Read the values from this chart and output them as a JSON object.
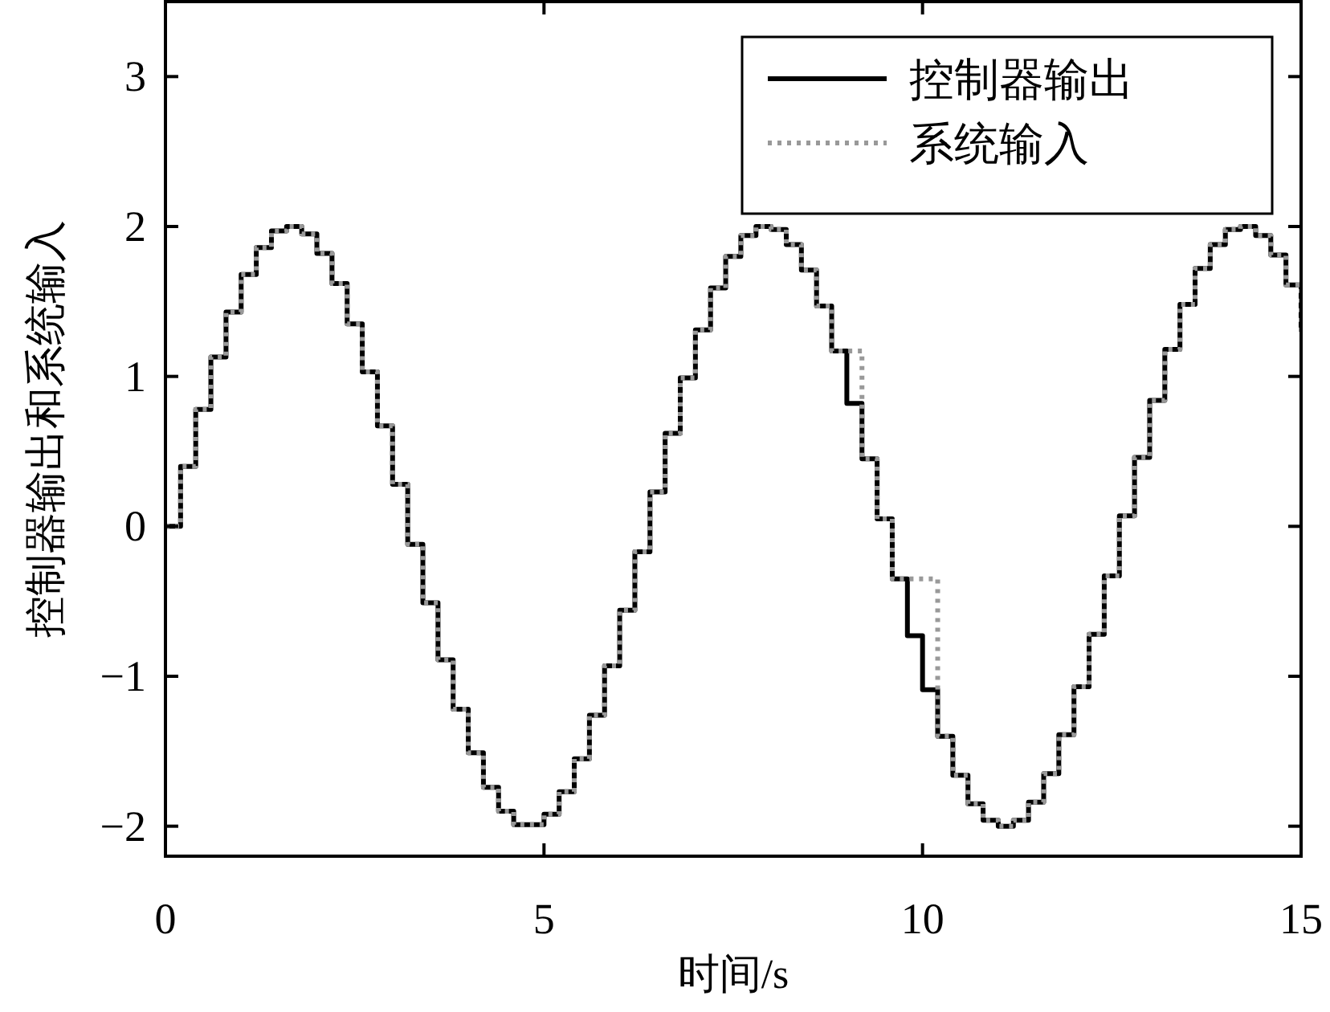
{
  "chart_data": {
    "type": "step",
    "xlabel": "时间/s",
    "ylabel": "控制器输出和系统输入",
    "x": [
      0,
      0.2,
      0.4,
      0.6,
      0.8,
      1.0,
      1.2,
      1.4,
      1.6,
      1.8,
      2.0,
      2.2,
      2.4,
      2.6,
      2.8,
      3.0,
      3.2,
      3.4,
      3.6,
      3.8,
      4.0,
      4.2,
      4.4,
      4.6,
      4.8,
      5.0,
      5.2,
      5.4,
      5.6,
      5.8,
      6.0,
      6.2,
      6.4,
      6.6,
      6.8,
      7.0,
      7.2,
      7.4,
      7.6,
      7.8,
      8.0,
      8.2,
      8.4,
      8.6,
      8.8,
      9.0,
      9.2,
      9.4,
      9.6,
      9.8,
      10.0,
      10.2,
      10.4,
      10.6,
      10.8,
      11.0,
      11.2,
      11.4,
      11.6,
      11.8,
      12.0,
      12.2,
      12.4,
      12.6,
      12.8,
      13.0,
      13.2,
      13.4,
      13.6,
      13.8,
      14.0,
      14.2,
      14.4,
      14.6,
      14.8,
      15.0
    ],
    "series": [
      {
        "name": "控制器输出",
        "color": "#000000",
        "line_style": "solid",
        "values": [
          0,
          0.4,
          0.78,
          1.13,
          1.43,
          1.68,
          1.86,
          1.97,
          2.0,
          1.95,
          1.82,
          1.62,
          1.35,
          1.03,
          0.67,
          0.28,
          -0.12,
          -0.51,
          -0.89,
          -1.22,
          -1.51,
          -1.74,
          -1.9,
          -1.99,
          -1.99,
          -1.92,
          -1.77,
          -1.55,
          -1.26,
          -0.93,
          -0.56,
          -0.17,
          0.23,
          0.62,
          0.99,
          1.31,
          1.59,
          1.8,
          1.94,
          2.0,
          1.98,
          1.88,
          1.71,
          1.47,
          1.17,
          0.82,
          0.45,
          0.05,
          -0.35,
          -0.73,
          -1.09,
          -1.4,
          -1.66,
          -1.85,
          -1.96,
          -2.0,
          -1.96,
          -1.84,
          -1.65,
          -1.39,
          -1.07,
          -0.72,
          -0.33,
          0.07,
          0.46,
          0.84,
          1.18,
          1.48,
          1.72,
          1.88,
          1.98,
          2.0,
          1.94,
          1.81,
          1.61,
          1.3
        ]
      },
      {
        "name": "系统输入",
        "color": "#999999",
        "line_style": "dotted",
        "values": [
          0,
          0.4,
          0.78,
          1.13,
          1.43,
          1.68,
          1.86,
          1.97,
          2.0,
          1.95,
          1.82,
          1.62,
          1.35,
          1.03,
          0.67,
          0.28,
          -0.12,
          -0.51,
          -0.89,
          -1.22,
          -1.51,
          -1.74,
          -1.9,
          -1.99,
          -1.99,
          -1.92,
          -1.77,
          -1.55,
          -1.26,
          -0.93,
          -0.56,
          -0.17,
          0.23,
          0.62,
          0.99,
          1.31,
          1.59,
          1.8,
          1.94,
          2.0,
          1.98,
          1.88,
          1.71,
          1.47,
          1.17,
          1.17,
          0.45,
          0.05,
          -0.35,
          -0.35,
          -0.35,
          -1.4,
          -1.66,
          -1.85,
          -1.96,
          -2.0,
          -1.96,
          -1.84,
          -1.65,
          -1.39,
          -1.07,
          -0.72,
          -0.33,
          0.07,
          0.46,
          0.84,
          1.18,
          1.48,
          1.72,
          1.88,
          1.98,
          2.0,
          1.94,
          1.81,
          1.61,
          1.3
        ]
      }
    ],
    "xlim": [
      0,
      15
    ],
    "xticks": [
      0,
      5,
      10,
      15
    ],
    "ylim": [
      -2.2,
      3.5
    ],
    "yticks": [
      {
        "value": -2,
        "label": "−2"
      },
      {
        "value": -1,
        "label": "−1"
      },
      0,
      1,
      2,
      3
    ],
    "legend": "top right"
  }
}
